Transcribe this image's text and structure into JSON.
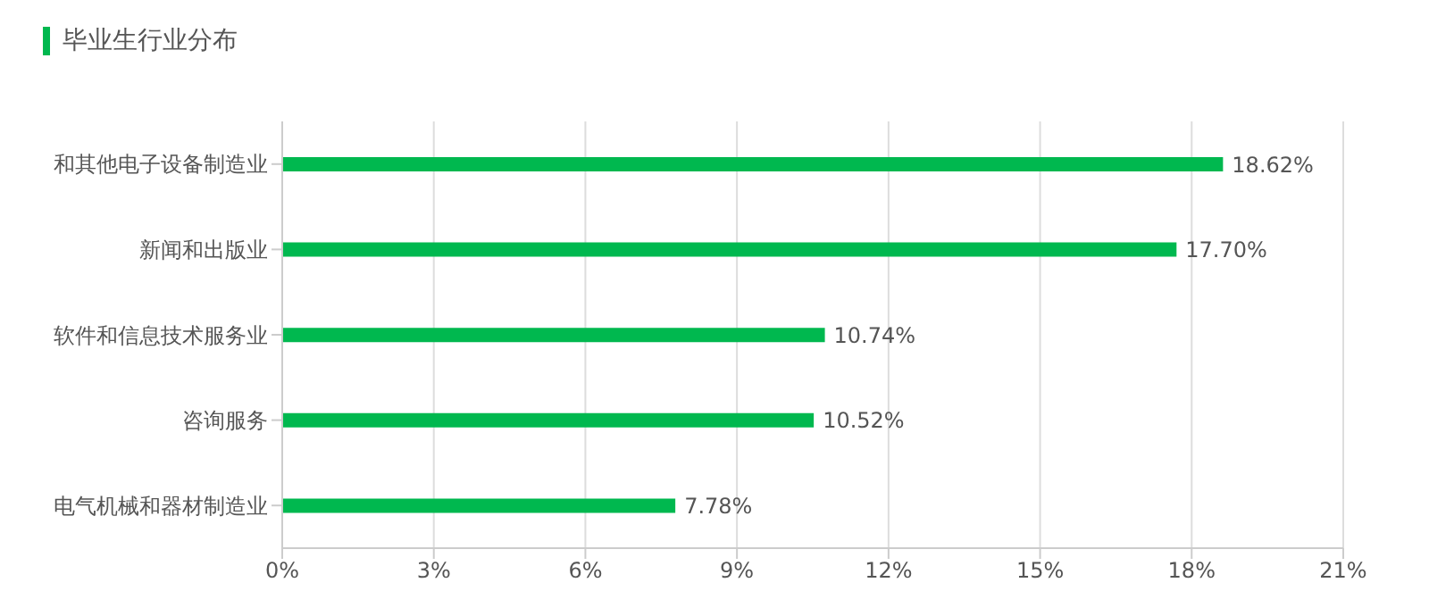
{
  "chart_data": {
    "type": "bar",
    "orientation": "horizontal",
    "title": "毕业生行业分布",
    "categories": [
      "和其他电子设备制造业",
      "新闻和出版业",
      "软件和信息技术服务业",
      "咨询服务",
      "电气机械和器材制造业"
    ],
    "values": [
      18.62,
      17.7,
      10.74,
      10.52,
      7.78
    ],
    "value_labels": [
      "18.62%",
      "17.70%",
      "10.74%",
      "10.52%",
      "7.78%"
    ],
    "color": "#00b84f",
    "xlim": [
      0,
      21
    ],
    "xticks": [
      {
        "value": 0,
        "label": "0%"
      },
      {
        "value": 3,
        "label": "3%"
      },
      {
        "value": 6,
        "label": "6%"
      },
      {
        "value": 9,
        "label": "9%"
      },
      {
        "value": 12,
        "label": "12%"
      },
      {
        "value": 15,
        "label": "15%"
      },
      {
        "value": 18,
        "label": "18%"
      },
      {
        "value": 21,
        "label": "21%"
      }
    ],
    "grid": "x",
    "legend": false
  }
}
